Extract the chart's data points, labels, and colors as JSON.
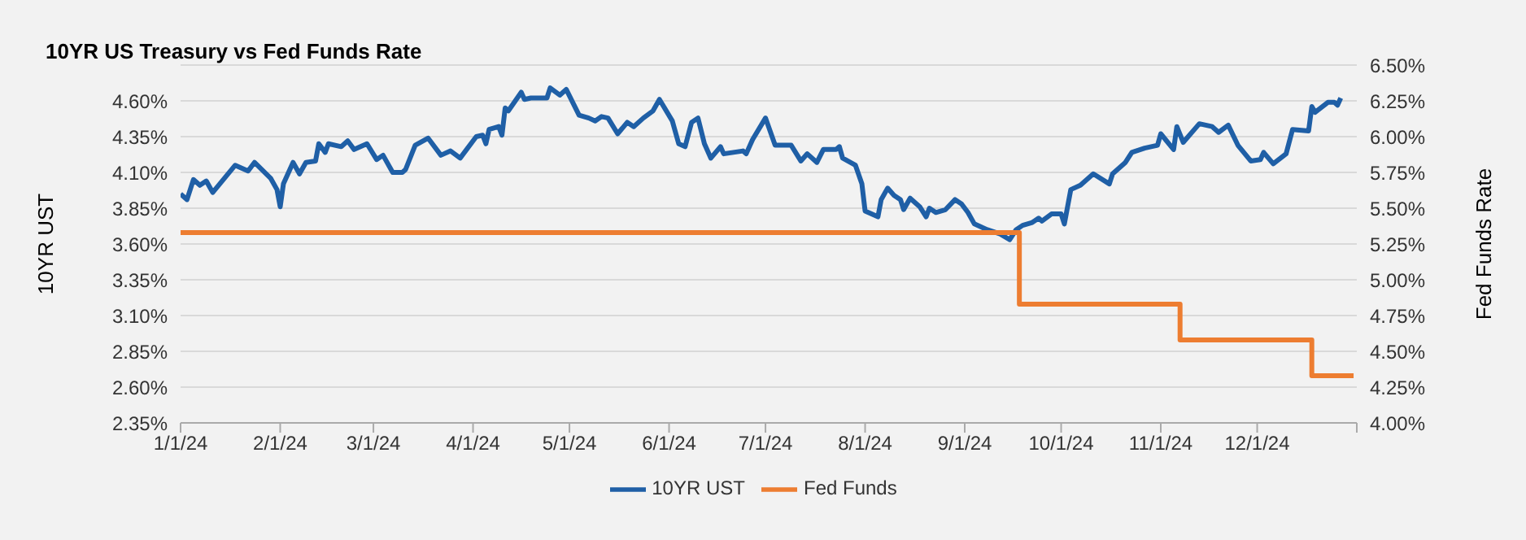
{
  "chart_data": {
    "type": "line",
    "title": "10YR US Treasury vs Fed Funds Rate",
    "ylabel": "10YR UST",
    "y2label": "Fed Funds Rate",
    "xlim": [
      "2024-01-01",
      "2025-01-01"
    ],
    "xticks": [
      {
        "value": "2024-01-01",
        "label": "1/1/24"
      },
      {
        "value": "2024-02-01",
        "label": "2/1/24"
      },
      {
        "value": "2024-03-01",
        "label": "3/1/24"
      },
      {
        "value": "2024-04-01",
        "label": "4/1/24"
      },
      {
        "value": "2024-05-01",
        "label": "5/1/24"
      },
      {
        "value": "2024-06-01",
        "label": "6/1/24"
      },
      {
        "value": "2024-07-01",
        "label": "7/1/24"
      },
      {
        "value": "2024-08-01",
        "label": "8/1/24"
      },
      {
        "value": "2024-09-01",
        "label": "9/1/24"
      },
      {
        "value": "2024-10-01",
        "label": "10/1/24"
      },
      {
        "value": "2024-11-01",
        "label": "11/1/24"
      },
      {
        "value": "2024-12-01",
        "label": "12/1/24"
      },
      {
        "value": "2025-01-01",
        "label": null
      }
    ],
    "ylim": [
      2.35,
      4.85
    ],
    "yticks": [
      {
        "value": 2.35,
        "label": "2.35%"
      },
      {
        "value": 2.6,
        "label": "2.60%"
      },
      {
        "value": 2.85,
        "label": "2.85%"
      },
      {
        "value": 3.1,
        "label": "3.10%"
      },
      {
        "value": 3.35,
        "label": "3.35%"
      },
      {
        "value": 3.6,
        "label": "3.60%"
      },
      {
        "value": 3.85,
        "label": "3.85%"
      },
      {
        "value": 4.1,
        "label": "4.10%"
      },
      {
        "value": 4.35,
        "label": "4.35%"
      },
      {
        "value": 4.6,
        "label": "4.60%"
      }
    ],
    "y2lim": [
      4.0,
      6.5
    ],
    "y2ticks": [
      {
        "value": 4.0,
        "label": "4.00%"
      },
      {
        "value": 4.25,
        "label": "4.25%"
      },
      {
        "value": 4.5,
        "label": "4.50%"
      },
      {
        "value": 4.75,
        "label": "4.75%"
      },
      {
        "value": 5.0,
        "label": "5.00%"
      },
      {
        "value": 5.25,
        "label": "5.25%"
      },
      {
        "value": 5.5,
        "label": "5.50%"
      },
      {
        "value": 5.75,
        "label": "5.75%"
      },
      {
        "value": 6.0,
        "label": "6.00%"
      },
      {
        "value": 6.25,
        "label": "6.25%"
      },
      {
        "value": 6.5,
        "label": "6.50%"
      }
    ],
    "grid": "y",
    "legend": "bottom",
    "marker": "none",
    "series": [
      {
        "name": "10YR UST",
        "color": "#1f5fa6",
        "x": [
          "2024-01-01",
          "2024-01-03",
          "2024-01-05",
          "2024-01-07",
          "2024-01-09",
          "2024-01-11",
          "2024-01-18",
          "2024-01-22",
          "2024-01-24",
          "2024-01-29",
          "2024-01-31",
          "2024-02-01",
          "2024-02-02",
          "2024-02-05",
          "2024-02-07",
          "2024-02-09",
          "2024-02-12",
          "2024-02-13",
          "2024-02-15",
          "2024-02-16",
          "2024-02-20",
          "2024-02-22",
          "2024-02-24",
          "2024-02-28",
          "2024-03-02",
          "2024-03-04",
          "2024-03-07",
          "2024-03-10",
          "2024-03-11",
          "2024-03-14",
          "2024-03-18",
          "2024-03-22",
          "2024-03-25",
          "2024-03-28",
          "2024-04-02",
          "2024-04-04",
          "2024-04-05",
          "2024-04-06",
          "2024-04-09",
          "2024-04-10",
          "2024-04-11",
          "2024-04-12",
          "2024-04-16",
          "2024-04-17",
          "2024-04-19",
          "2024-04-24",
          "2024-04-25",
          "2024-04-28",
          "2024-04-30",
          "2024-05-04",
          "2024-05-07",
          "2024-05-09",
          "2024-05-11",
          "2024-05-13",
          "2024-05-16",
          "2024-05-19",
          "2024-05-21",
          "2024-05-24",
          "2024-05-27",
          "2024-05-29",
          "2024-06-02",
          "2024-06-04",
          "2024-06-06",
          "2024-06-08",
          "2024-06-10",
          "2024-06-12",
          "2024-06-14",
          "2024-06-17",
          "2024-06-18",
          "2024-06-24",
          "2024-06-25",
          "2024-06-27",
          "2024-07-01",
          "2024-07-04",
          "2024-07-09",
          "2024-07-12",
          "2024-07-14",
          "2024-07-17",
          "2024-07-19",
          "2024-07-23",
          "2024-07-24",
          "2024-07-25",
          "2024-07-29",
          "2024-07-31",
          "2024-08-01",
          "2024-08-05",
          "2024-08-06",
          "2024-08-08",
          "2024-08-10",
          "2024-08-12",
          "2024-08-13",
          "2024-08-15",
          "2024-08-18",
          "2024-08-20",
          "2024-08-21",
          "2024-08-23",
          "2024-08-26",
          "2024-08-29",
          "2024-08-31",
          "2024-09-02",
          "2024-09-04",
          "2024-09-08",
          "2024-09-12",
          "2024-09-15",
          "2024-09-17",
          "2024-09-19",
          "2024-09-22",
          "2024-09-24",
          "2024-09-25",
          "2024-09-28",
          "2024-10-01",
          "2024-10-02",
          "2024-10-04",
          "2024-10-07",
          "2024-10-11",
          "2024-10-16",
          "2024-10-17",
          "2024-10-21",
          "2024-10-23",
          "2024-10-27",
          "2024-10-31",
          "2024-11-01",
          "2024-11-05",
          "2024-11-06",
          "2024-11-08",
          "2024-11-13",
          "2024-11-17",
          "2024-11-19",
          "2024-11-22",
          "2024-11-25",
          "2024-11-29",
          "2024-12-02",
          "2024-12-03",
          "2024-12-06",
          "2024-12-10",
          "2024-12-12",
          "2024-12-17",
          "2024-12-18",
          "2024-12-19",
          "2024-12-23",
          "2024-12-25",
          "2024-12-26",
          "2024-12-27"
        ],
        "values": [
          3.95,
          3.91,
          4.05,
          4.01,
          4.04,
          3.96,
          4.15,
          4.11,
          4.17,
          4.06,
          3.98,
          3.86,
          4.02,
          4.17,
          4.09,
          4.17,
          4.18,
          4.3,
          4.24,
          4.3,
          4.28,
          4.32,
          4.26,
          4.3,
          4.19,
          4.22,
          4.1,
          4.1,
          4.12,
          4.29,
          4.34,
          4.22,
          4.25,
          4.2,
          4.35,
          4.36,
          4.3,
          4.4,
          4.42,
          4.36,
          4.55,
          4.53,
          4.66,
          4.61,
          4.62,
          4.62,
          4.69,
          4.64,
          4.68,
          4.5,
          4.48,
          4.46,
          4.49,
          4.48,
          4.37,
          4.45,
          4.42,
          4.48,
          4.53,
          4.61,
          4.46,
          4.3,
          4.28,
          4.45,
          4.48,
          4.3,
          4.2,
          4.28,
          4.23,
          4.25,
          4.23,
          4.33,
          4.48,
          4.29,
          4.29,
          4.18,
          4.23,
          4.17,
          4.26,
          4.26,
          4.28,
          4.2,
          4.15,
          4.02,
          3.83,
          3.79,
          3.91,
          3.99,
          3.94,
          3.91,
          3.84,
          3.92,
          3.86,
          3.79,
          3.85,
          3.82,
          3.84,
          3.91,
          3.88,
          3.82,
          3.74,
          3.7,
          3.67,
          3.63,
          3.7,
          3.73,
          3.75,
          3.78,
          3.76,
          3.81,
          3.81,
          3.74,
          3.98,
          4.01,
          4.09,
          4.02,
          4.09,
          4.17,
          4.24,
          4.27,
          4.29,
          4.37,
          4.26,
          4.42,
          4.31,
          4.44,
          4.42,
          4.38,
          4.43,
          4.29,
          4.18,
          4.19,
          4.24,
          4.16,
          4.23,
          4.4,
          4.39,
          4.56,
          4.52,
          4.59,
          4.59,
          4.57,
          4.62
        ]
      },
      {
        "name": "Fed Funds",
        "color": "#ed7d31",
        "type": "step",
        "axis": "y2",
        "x": [
          "2024-01-01",
          "2024-09-18",
          "2024-11-07",
          "2024-12-18",
          "2024-12-31"
        ],
        "values": [
          5.33,
          4.83,
          4.58,
          4.33,
          4.33
        ]
      }
    ]
  }
}
